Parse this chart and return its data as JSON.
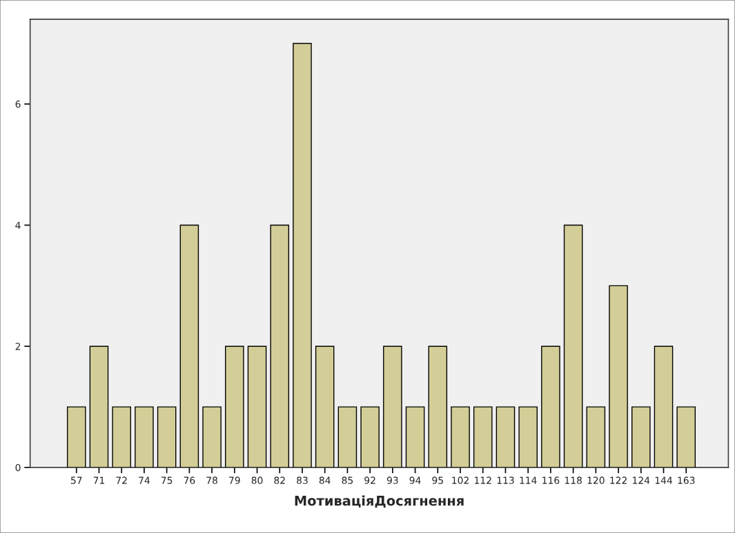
{
  "chart_data": {
    "type": "bar",
    "xlabel": "МотиваціяДосягнення",
    "categories": [
      "57",
      "71",
      "72",
      "74",
      "75",
      "76",
      "78",
      "79",
      "80",
      "82",
      "83",
      "84",
      "85",
      "92",
      "93",
      "94",
      "95",
      "102",
      "112",
      "113",
      "114",
      "116",
      "118",
      "120",
      "122",
      "124",
      "144",
      "163"
    ],
    "values": [
      1,
      2,
      1,
      1,
      1,
      4,
      1,
      2,
      2,
      4,
      7,
      2,
      1,
      1,
      2,
      1,
      2,
      1,
      1,
      1,
      1,
      2,
      4,
      1,
      3,
      1,
      2,
      1
    ],
    "color": "#d3ce97",
    "ylim": [
      0,
      7.4
    ],
    "yticks": [
      0,
      2,
      4,
      6
    ],
    "grid": false,
    "legend": false
  }
}
